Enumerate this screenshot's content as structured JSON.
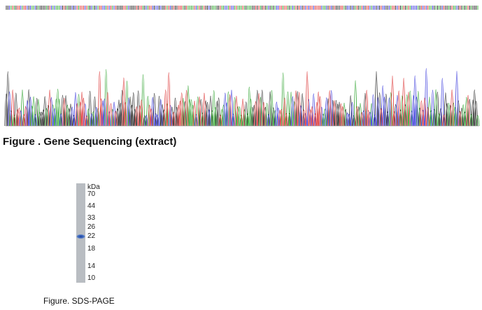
{
  "figure_1": {
    "caption": "Figure . Gene Sequencing (extract)"
  },
  "figure_2": {
    "caption": "Figure. SDS-PAGE",
    "unit": "kDa",
    "markers": [
      "70",
      "44",
      "33",
      "26",
      "22",
      "18",
      "14",
      "10"
    ]
  }
}
